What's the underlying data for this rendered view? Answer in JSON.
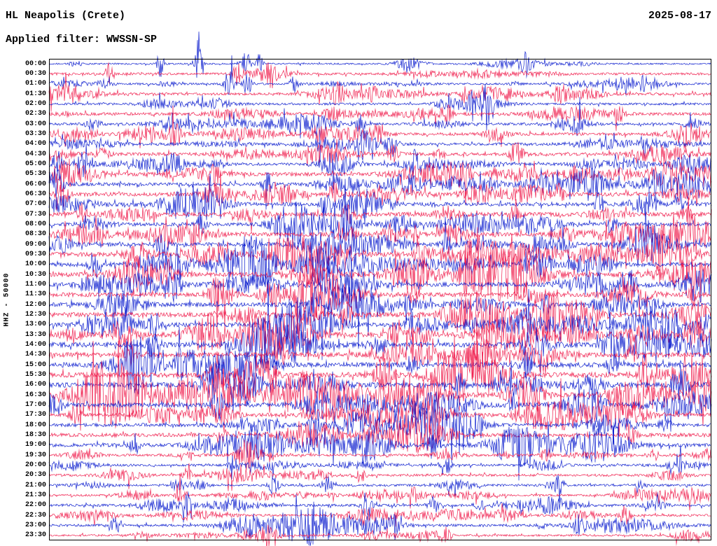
{
  "header": {
    "station": "HL Neapolis (Crete)",
    "date": "2025-08-17",
    "filter_label": "Applied filter: WWSSN-SP"
  },
  "axis": {
    "left_label": "HHZ - 50000"
  },
  "chart_data": {
    "type": "line",
    "subtype": "helicorder-seismogram",
    "title": "HL Neapolis (Crete)",
    "date": "2025-08-17",
    "filter": "WWSSN-SP",
    "channel_scale": "HHZ - 50000",
    "minutes_per_row": 30,
    "rows_count": 48,
    "palette": {
      "blue": "#0f20cf",
      "red": "#f02150",
      "frame": "#000000"
    },
    "rows": [
      {
        "t": "00:00",
        "color": "blue",
        "amp": 1.1,
        "burst": 4,
        "events": [
          {
            "x": 0.168,
            "a": 26,
            "w": 3
          },
          {
            "x": 0.225,
            "a": 46,
            "w": 3.5
          },
          {
            "x": 0.298,
            "a": 20,
            "w": 4
          },
          {
            "x": 0.318,
            "a": 16,
            "w": 3
          },
          {
            "x": 0.72,
            "a": 12,
            "w": 5
          }
        ]
      },
      {
        "t": "00:30",
        "color": "red",
        "amp": 1.7,
        "burst": 3,
        "events": [
          {
            "x": 0.09,
            "a": 14,
            "w": 4
          },
          {
            "x": 0.285,
            "a": 16,
            "w": 5
          },
          {
            "x": 0.335,
            "a": 12,
            "w": 4
          }
        ]
      },
      {
        "t": "01:00",
        "color": "blue",
        "amp": 1.4,
        "burst": 3,
        "events": [
          {
            "x": 0.272,
            "a": 24,
            "w": 5
          },
          {
            "x": 0.3,
            "a": 18,
            "w": 4
          },
          {
            "x": 0.37,
            "a": 12,
            "w": 4
          }
        ]
      },
      {
        "t": "01:30",
        "color": "red",
        "amp": 1.9,
        "burst": 3,
        "events": [
          {
            "x": 0.435,
            "a": 16,
            "w": 5
          },
          {
            "x": 0.49,
            "a": 14,
            "w": 4
          },
          {
            "x": 0.625,
            "a": 12,
            "w": 4
          }
        ]
      },
      {
        "t": "02:00",
        "color": "blue",
        "amp": 1.6,
        "burst": 3.5,
        "events": [
          {
            "x": 0.66,
            "a": 30,
            "w": 5
          },
          {
            "x": 0.64,
            "a": 18,
            "w": 4
          }
        ]
      },
      {
        "t": "02:30",
        "color": "red",
        "amp": 2.1,
        "burst": 3,
        "events": [
          {
            "x": 0.6,
            "a": 12,
            "w": 5
          },
          {
            "x": 0.86,
            "a": 10,
            "w": 5
          }
        ]
      },
      {
        "t": "03:00",
        "color": "blue",
        "amp": 1.8,
        "burst": 3.5,
        "events": [
          {
            "x": 0.41,
            "a": 16,
            "w": 5
          },
          {
            "x": 0.47,
            "a": 14,
            "w": 4
          },
          {
            "x": 0.8,
            "a": 12,
            "w": 5
          }
        ]
      },
      {
        "t": "03:30",
        "color": "red",
        "amp": 2.1,
        "burst": 3.5,
        "events": [
          {
            "x": 0.19,
            "a": 20,
            "w": 6
          },
          {
            "x": 0.5,
            "a": 12,
            "w": 4
          }
        ]
      },
      {
        "t": "04:00",
        "color": "blue",
        "amp": 1.8,
        "burst": 3,
        "events": [
          {
            "x": 0.475,
            "a": 16,
            "w": 5
          },
          {
            "x": 0.52,
            "a": 14,
            "w": 4
          },
          {
            "x": 0.9,
            "a": 12,
            "w": 4
          }
        ]
      },
      {
        "t": "04:30",
        "color": "red",
        "amp": 2.3,
        "burst": 3,
        "events": [
          {
            "x": 0.52,
            "a": 12,
            "w": 5
          },
          {
            "x": 0.7,
            "a": 12,
            "w": 5
          }
        ]
      },
      {
        "t": "05:00",
        "color": "blue",
        "amp": 2.0,
        "burst": 3.5,
        "events": [
          {
            "x": 0.012,
            "a": 20,
            "w": 5
          },
          {
            "x": 0.05,
            "a": 12,
            "w": 5
          },
          {
            "x": 0.55,
            "a": 14,
            "w": 5
          }
        ]
      },
      {
        "t": "05:30",
        "color": "red",
        "amp": 2.6,
        "burst": 3.5,
        "events": [
          {
            "x": 0.02,
            "a": 16,
            "w": 6
          },
          {
            "x": 0.25,
            "a": 14,
            "w": 5
          },
          {
            "x": 0.63,
            "a": 14,
            "w": 5
          }
        ]
      },
      {
        "t": "06:00",
        "color": "blue",
        "amp": 2.3,
        "burst": 4,
        "events": [
          {
            "x": 0.012,
            "a": 26,
            "w": 6
          },
          {
            "x": 0.33,
            "a": 16,
            "w": 5
          },
          {
            "x": 0.92,
            "a": 26,
            "w": 6
          },
          {
            "x": 0.96,
            "a": 18,
            "w": 5
          }
        ]
      },
      {
        "t": "06:30",
        "color": "red",
        "amp": 2.8,
        "burst": 4,
        "events": [
          {
            "x": 0.02,
            "a": 18,
            "w": 6
          },
          {
            "x": 0.43,
            "a": 16,
            "w": 5
          },
          {
            "x": 0.77,
            "a": 14,
            "w": 5
          }
        ]
      },
      {
        "t": "07:00",
        "color": "blue",
        "amp": 2.7,
        "burst": 4.5,
        "events": [
          {
            "x": 0.42,
            "a": 18,
            "w": 6
          },
          {
            "x": 0.47,
            "a": 16,
            "w": 5
          },
          {
            "x": 0.83,
            "a": 16,
            "w": 5
          },
          {
            "x": 0.95,
            "a": 18,
            "w": 5
          }
        ]
      },
      {
        "t": "07:30",
        "color": "red",
        "amp": 2.9,
        "burst": 4,
        "events": [
          {
            "x": 0.05,
            "a": 14,
            "w": 5
          },
          {
            "x": 0.45,
            "a": 16,
            "w": 5
          },
          {
            "x": 0.96,
            "a": 16,
            "w": 5
          }
        ]
      },
      {
        "t": "08:00",
        "color": "blue",
        "amp": 2.5,
        "burst": 4,
        "events": [
          {
            "x": 0.23,
            "a": 16,
            "w": 5
          },
          {
            "x": 0.45,
            "a": 16,
            "w": 5
          },
          {
            "x": 0.85,
            "a": 14,
            "w": 5
          }
        ]
      },
      {
        "t": "08:30",
        "color": "red",
        "amp": 2.9,
        "burst": 4,
        "events": [
          {
            "x": 0.22,
            "a": 14,
            "w": 6
          },
          {
            "x": 0.55,
            "a": 12,
            "w": 5
          }
        ]
      },
      {
        "t": "09:00",
        "color": "blue",
        "amp": 2.7,
        "burst": 4.5,
        "events": [
          {
            "x": 0.17,
            "a": 20,
            "w": 6
          },
          {
            "x": 0.6,
            "a": 16,
            "w": 5
          },
          {
            "x": 0.91,
            "a": 16,
            "w": 5
          }
        ]
      },
      {
        "t": "09:30",
        "color": "red",
        "amp": 3.1,
        "burst": 4,
        "events": [
          {
            "x": 0.35,
            "a": 14,
            "w": 6
          },
          {
            "x": 0.56,
            "a": 14,
            "w": 5
          },
          {
            "x": 0.92,
            "a": 14,
            "w": 5
          }
        ]
      },
      {
        "t": "10:00",
        "color": "blue",
        "amp": 2.9,
        "burst": 4.5,
        "events": [
          {
            "x": 0.07,
            "a": 18,
            "w": 6
          },
          {
            "x": 0.3,
            "a": 16,
            "w": 6
          },
          {
            "x": 0.72,
            "a": 16,
            "w": 5
          }
        ]
      },
      {
        "t": "10:30",
        "color": "red",
        "amp": 3.3,
        "burst": 4,
        "events": [
          {
            "x": 0.18,
            "a": 16,
            "w": 6
          },
          {
            "x": 0.63,
            "a": 14,
            "w": 5
          }
        ]
      },
      {
        "t": "11:00",
        "color": "blue",
        "amp": 3.1,
        "burst": 4.5,
        "events": [
          {
            "x": 0.19,
            "a": 20,
            "w": 6
          },
          {
            "x": 0.42,
            "a": 16,
            "w": 5
          },
          {
            "x": 0.88,
            "a": 16,
            "w": 5
          }
        ]
      },
      {
        "t": "11:30",
        "color": "red",
        "amp": 3.1,
        "burst": 4,
        "events": [
          {
            "x": 0.25,
            "a": 16,
            "w": 6
          },
          {
            "x": 0.55,
            "a": 14,
            "w": 5
          },
          {
            "x": 0.97,
            "a": 14,
            "w": 5
          }
        ]
      },
      {
        "t": "12:00",
        "color": "blue",
        "amp": 2.9,
        "burst": 4.5,
        "events": [
          {
            "x": 0.4,
            "a": 16,
            "w": 5
          },
          {
            "x": 0.75,
            "a": 16,
            "w": 5
          }
        ]
      },
      {
        "t": "12:30",
        "color": "red",
        "amp": 3.3,
        "burst": 4,
        "events": [
          {
            "x": 0.45,
            "a": 16,
            "w": 6
          },
          {
            "x": 0.76,
            "a": 14,
            "w": 5
          }
        ]
      },
      {
        "t": "13:00",
        "color": "blue",
        "amp": 3.1,
        "burst": 4.5,
        "events": [
          {
            "x": 0.16,
            "a": 18,
            "w": 6
          },
          {
            "x": 0.42,
            "a": 16,
            "w": 5
          },
          {
            "x": 0.72,
            "a": 16,
            "w": 5
          }
        ]
      },
      {
        "t": "13:30",
        "color": "red",
        "amp": 3.5,
        "burst": 4.5,
        "events": [
          {
            "x": 0.25,
            "a": 18,
            "w": 7
          },
          {
            "x": 0.52,
            "a": 16,
            "w": 6
          }
        ]
      },
      {
        "t": "14:00",
        "color": "blue",
        "amp": 3.5,
        "burst": 5,
        "events": [
          {
            "x": 0.16,
            "a": 22,
            "w": 7
          },
          {
            "x": 0.34,
            "a": 18,
            "w": 6
          },
          {
            "x": 0.5,
            "a": 16,
            "w": 6
          }
        ]
      },
      {
        "t": "14:30",
        "color": "red",
        "amp": 3.3,
        "burst": 4.5,
        "events": [
          {
            "x": 0.12,
            "a": 18,
            "w": 6
          },
          {
            "x": 0.35,
            "a": 16,
            "w": 6
          },
          {
            "x": 0.88,
            "a": 14,
            "w": 5
          }
        ]
      },
      {
        "t": "15:00",
        "color": "blue",
        "amp": 3.5,
        "burst": 5,
        "events": [
          {
            "x": 0.2,
            "a": 20,
            "w": 7
          },
          {
            "x": 0.55,
            "a": 16,
            "w": 6
          },
          {
            "x": 0.85,
            "a": 16,
            "w": 5
          }
        ]
      },
      {
        "t": "15:30",
        "color": "red",
        "amp": 3.7,
        "burst": 5,
        "events": [
          {
            "x": 0.255,
            "a": 34,
            "w": 8
          },
          {
            "x": 0.33,
            "a": 18,
            "w": 6
          },
          {
            "x": 0.9,
            "a": 16,
            "w": 5
          }
        ]
      },
      {
        "t": "16:00",
        "color": "blue",
        "amp": 3.5,
        "burst": 5,
        "events": [
          {
            "x": 0.255,
            "a": 38,
            "w": 8
          },
          {
            "x": 0.3,
            "a": 20,
            "w": 6
          },
          {
            "x": 0.62,
            "a": 16,
            "w": 5
          }
        ]
      },
      {
        "t": "16:30",
        "color": "red",
        "amp": 3.3,
        "burst": 5,
        "events": [
          {
            "x": 0.26,
            "a": 30,
            "w": 7
          },
          {
            "x": 0.5,
            "a": 16,
            "w": 5
          },
          {
            "x": 0.93,
            "a": 16,
            "w": 5
          }
        ]
      },
      {
        "t": "17:00",
        "color": "blue",
        "amp": 3.1,
        "burst": 4.5,
        "events": [
          {
            "x": 0.255,
            "a": 22,
            "w": 6
          },
          {
            "x": 0.7,
            "a": 16,
            "w": 5
          }
        ]
      },
      {
        "t": "17:30",
        "color": "red",
        "amp": 2.7,
        "burst": 4.5,
        "events": [
          {
            "x": 0.04,
            "a": 16,
            "w": 5
          },
          {
            "x": 0.26,
            "a": 18,
            "w": 6
          },
          {
            "x": 0.58,
            "a": 14,
            "w": 5
          }
        ]
      },
      {
        "t": "18:00",
        "color": "blue",
        "amp": 2.5,
        "burst": 4.5,
        "events": [
          {
            "x": 0.4,
            "a": 18,
            "w": 6
          },
          {
            "x": 0.62,
            "a": 16,
            "w": 5
          },
          {
            "x": 0.93,
            "a": 14,
            "w": 5
          }
        ]
      },
      {
        "t": "18:30",
        "color": "red",
        "amp": 2.7,
        "burst": 4.5,
        "events": [
          {
            "x": 0.26,
            "a": 14,
            "w": 5
          },
          {
            "x": 0.52,
            "a": 16,
            "w": 6
          },
          {
            "x": 0.88,
            "a": 14,
            "w": 5
          }
        ]
      },
      {
        "t": "19:00",
        "color": "blue",
        "amp": 2.5,
        "burst": 4.5,
        "events": [
          {
            "x": 0.13,
            "a": 16,
            "w": 5
          },
          {
            "x": 0.58,
            "a": 16,
            "w": 6
          }
        ]
      },
      {
        "t": "19:30",
        "color": "red",
        "amp": 1.7,
        "burst": 3,
        "events": [
          {
            "x": 0.3,
            "a": 10,
            "w": 5
          },
          {
            "x": 0.75,
            "a": 10,
            "w": 5
          }
        ]
      },
      {
        "t": "20:00",
        "color": "blue",
        "amp": 1.6,
        "burst": 3.5,
        "events": [
          {
            "x": 0.28,
            "a": 14,
            "w": 5
          },
          {
            "x": 0.6,
            "a": 12,
            "w": 5
          },
          {
            "x": 0.95,
            "a": 12,
            "w": 5
          }
        ]
      },
      {
        "t": "20:30",
        "color": "red",
        "amp": 1.7,
        "burst": 3.5,
        "events": [
          {
            "x": 0.21,
            "a": 12,
            "w": 5
          },
          {
            "x": 0.47,
            "a": 10,
            "w": 5
          }
        ]
      },
      {
        "t": "21:00",
        "color": "blue",
        "amp": 1.6,
        "burst": 3.5,
        "events": [
          {
            "x": 0.34,
            "a": 14,
            "w": 5
          },
          {
            "x": 0.42,
            "a": 12,
            "w": 5
          },
          {
            "x": 0.77,
            "a": 12,
            "w": 5
          }
        ]
      },
      {
        "t": "21:30",
        "color": "red",
        "amp": 1.5,
        "burst": 3,
        "events": [
          {
            "x": 0.2,
            "a": 14,
            "w": 5
          },
          {
            "x": 0.55,
            "a": 10,
            "w": 5
          }
        ]
      },
      {
        "t": "22:00",
        "color": "blue",
        "amp": 1.8,
        "burst": 4,
        "events": [
          {
            "x": 0.21,
            "a": 16,
            "w": 5
          },
          {
            "x": 0.48,
            "a": 14,
            "w": 5
          },
          {
            "x": 0.58,
            "a": 12,
            "w": 5
          }
        ]
      },
      {
        "t": "22:30",
        "color": "red",
        "amp": 1.6,
        "burst": 3.5,
        "events": [
          {
            "x": 0.48,
            "a": 12,
            "w": 5
          },
          {
            "x": 0.87,
            "a": 16,
            "w": 5
          }
        ]
      },
      {
        "t": "23:00",
        "color": "blue",
        "amp": 1.8,
        "burst": 4,
        "events": [
          {
            "x": 0.1,
            "a": 14,
            "w": 5
          },
          {
            "x": 0.52,
            "a": 12,
            "w": 5
          },
          {
            "x": 0.8,
            "a": 12,
            "w": 5
          }
        ]
      },
      {
        "t": "23:30",
        "color": "red",
        "amp": 1.4,
        "burst": 3,
        "events": [
          {
            "x": 0.33,
            "a": 12,
            "w": 5
          },
          {
            "x": 0.6,
            "a": 10,
            "w": 5
          }
        ]
      }
    ]
  }
}
